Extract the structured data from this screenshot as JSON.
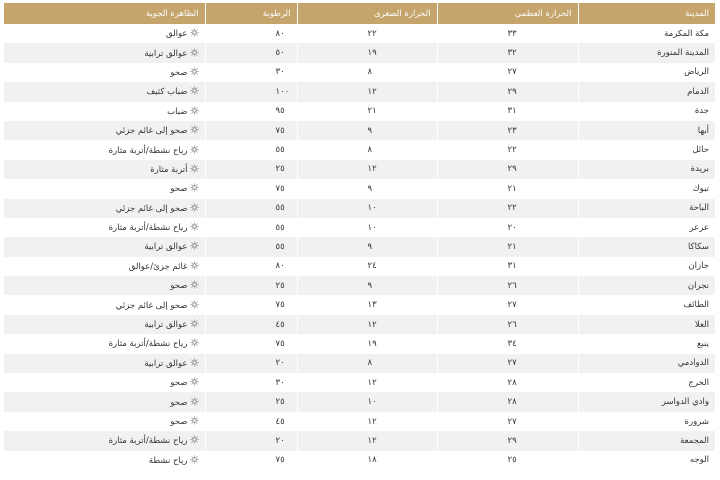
{
  "table": {
    "header": [
      "المدينة",
      "الحرارة العظمى",
      "الحرارة الصغرى",
      "الرطوبة",
      "الظاهرة الجوية"
    ],
    "rows": [
      [
        "مكة المكرمة",
        "٣٣",
        "٢٢",
        "٨٠",
        "عوالق"
      ],
      [
        "المدينة المنورة",
        "٣٢",
        "١٩",
        "٥٠",
        "عوالق ترابية"
      ],
      [
        "الرياض",
        "٢٧",
        "٨",
        "٣٠",
        "صحو"
      ],
      [
        "الدمام",
        "٢٩",
        "١٢",
        "١٠٠",
        "ضباب كثيف"
      ],
      [
        "جدة",
        "٣١",
        "٢١",
        "٩٥",
        "ضباب"
      ],
      [
        "أبها",
        "٢٣",
        "٩",
        "٧٥",
        "صحو إلى غائم جزئي"
      ],
      [
        "حائل",
        "٢٢",
        "٨",
        "٥٥",
        "رياح نشطة/أتربة مثارة"
      ],
      [
        "بريدة",
        "٢٩",
        "١٢",
        "٢٥",
        "أتربة مثارة"
      ],
      [
        "تبوك",
        "٢١",
        "٩",
        "٧٥",
        "صحو"
      ],
      [
        "الباحة",
        "٢٢",
        "١٠",
        "٥٥",
        "صحو إلى غائم جزئي"
      ],
      [
        "عرعر",
        "٢٠",
        "١٠",
        "٥٥",
        "رياح نشطة/أتربة مثارة"
      ],
      [
        "سكاكا",
        "٢١",
        "٩",
        "٥٥",
        "عوالق ترابية"
      ],
      [
        "جازان",
        "٣١",
        "٢٤",
        "٨٠",
        "غائم جزئ/عوالق"
      ],
      [
        "نجران",
        "٢٦",
        "٩",
        "٢٥",
        "صحو"
      ],
      [
        "الطائف",
        "٢٧",
        "١٣",
        "٧٥",
        "صحو إلى غائم جزئي"
      ],
      [
        "العلا",
        "٢٦",
        "١٢",
        "٤٥",
        "عوالق ترابية"
      ],
      [
        "ينبع",
        "٣٤",
        "١٩",
        "٧٥",
        "رياح نشطة/أتربة مثارة"
      ],
      [
        "الدوادمي",
        "٢٧",
        "٨",
        "٢٠",
        "عوالق ترابية"
      ],
      [
        "الخرج",
        "٢٨",
        "١٢",
        "٣٠",
        "صحو"
      ],
      [
        "وادي الدواسر",
        "٢٨",
        "١٠",
        "٢٥",
        "صحو"
      ],
      [
        "شرورة",
        "٢٧",
        "١٢",
        "٤٥",
        "صحو"
      ],
      [
        "المجمعة",
        "٢٩",
        "١٢",
        "٢٠",
        "رياح نشطة/أتربة مثارة"
      ],
      [
        "الوجه",
        "٢٥",
        "١٨",
        "٧٥",
        "رياح نشطة"
      ]
    ]
  }
}
